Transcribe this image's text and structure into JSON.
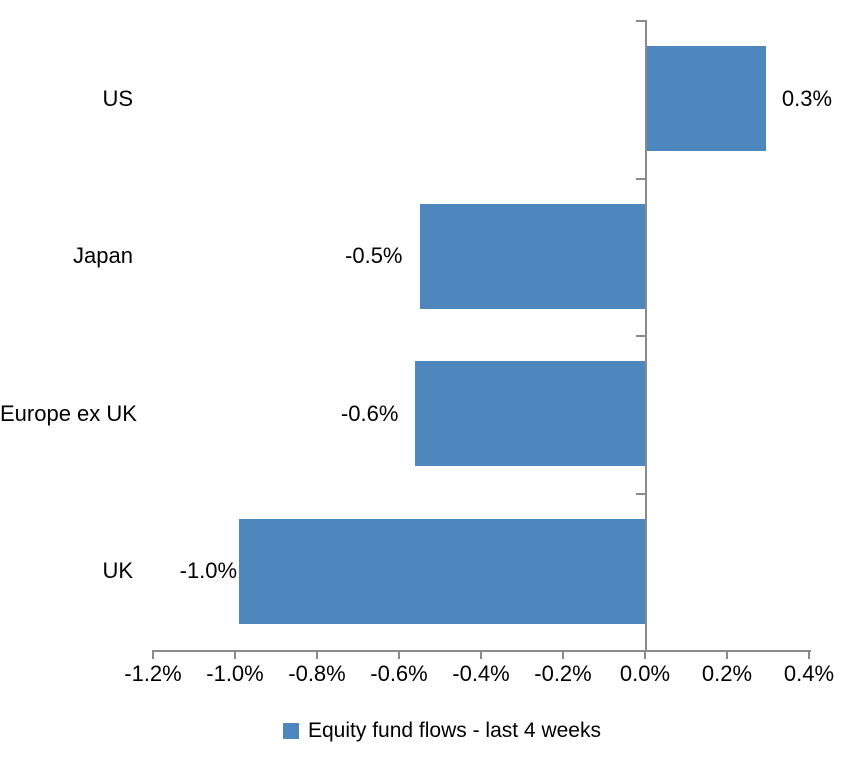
{
  "chart_data": {
    "type": "bar",
    "orientation": "horizontal",
    "title": "",
    "categories": [
      "US",
      "Japan",
      "Europe ex UK",
      "UK"
    ],
    "values": [
      0.3,
      -0.5,
      -0.6,
      -1.0
    ],
    "value_unit": "%",
    "measured_values": [
      0.29,
      -0.55,
      -0.56,
      -0.99
    ],
    "data_labels": [
      "0.3%",
      "-0.5%",
      "-0.6%",
      "-1.0%"
    ],
    "x_tick_labels": [
      "-1.2%",
      "-1.0%",
      "-0.8%",
      "-0.6%",
      "-0.4%",
      "-0.2%",
      "0.0%",
      "0.2%",
      "0.4%"
    ],
    "x_tick_values": [
      -1.2,
      -1.0,
      -0.8,
      -0.6,
      -0.4,
      -0.2,
      0.0,
      0.2,
      0.4
    ],
    "xlim": [
      -1.2,
      0.4
    ],
    "xlabel": "",
    "ylabel": "",
    "grid": false,
    "legend_position": "bottom",
    "legend": [
      {
        "label": "Equity fund flows - last 4 weeks",
        "color": "#4E87BE"
      }
    ],
    "colors": {
      "bar": "#4E87BE",
      "axis": "#8A8A8A",
      "text": "#000000",
      "background": "#FFFFFF"
    }
  }
}
